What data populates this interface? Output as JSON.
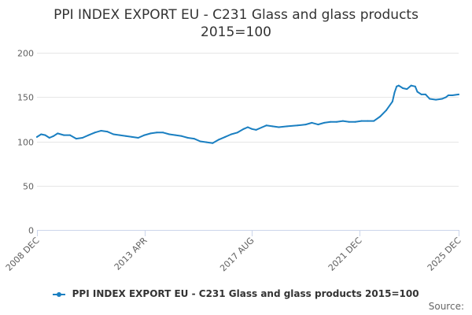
{
  "chart_data": {
    "type": "line",
    "title_line1": "PPI INDEX EXPORT EU - C231 Glass and glass products",
    "title_line2": "2015=100",
    "xlabel": "",
    "ylabel": "",
    "ylim": [
      0,
      200
    ],
    "yticks": [
      0,
      50,
      100,
      150,
      200
    ],
    "xlim": [
      "2008-12",
      "2025-12"
    ],
    "xticks": [
      {
        "date": "2008-12",
        "label": "2008 DEC"
      },
      {
        "date": "2013-04",
        "label": "2013 APR"
      },
      {
        "date": "2017-08",
        "label": "2017 AUG"
      },
      {
        "date": "2021-12",
        "label": "2021 DEC"
      },
      {
        "date": "2025-12",
        "label": "2025 DEC"
      }
    ],
    "grid": true,
    "legend_position": "bottom",
    "color": "#1a7fc1",
    "series": [
      {
        "name": "PPI INDEX EXPORT EU - C231 Glass and glass products 2015=100",
        "points": [
          [
            "2008-12",
            105
          ],
          [
            "2009-02",
            108
          ],
          [
            "2009-04",
            107
          ],
          [
            "2009-06",
            104
          ],
          [
            "2009-08",
            106
          ],
          [
            "2009-10",
            109
          ],
          [
            "2010-01",
            107
          ],
          [
            "2010-04",
            107
          ],
          [
            "2010-07",
            103
          ],
          [
            "2010-10",
            104
          ],
          [
            "2011-01",
            107
          ],
          [
            "2011-04",
            110
          ],
          [
            "2011-07",
            112
          ],
          [
            "2011-10",
            111
          ],
          [
            "2012-01",
            108
          ],
          [
            "2012-04",
            107
          ],
          [
            "2012-07",
            106
          ],
          [
            "2012-10",
            105
          ],
          [
            "2013-01",
            104
          ],
          [
            "2013-04",
            107
          ],
          [
            "2013-07",
            109
          ],
          [
            "2013-10",
            110
          ],
          [
            "2014-01",
            110
          ],
          [
            "2014-04",
            108
          ],
          [
            "2014-07",
            107
          ],
          [
            "2014-10",
            106
          ],
          [
            "2015-01",
            104
          ],
          [
            "2015-04",
            103
          ],
          [
            "2015-07",
            100
          ],
          [
            "2015-10",
            99
          ],
          [
            "2016-01",
            98
          ],
          [
            "2016-04",
            102
          ],
          [
            "2016-07",
            105
          ],
          [
            "2016-10",
            108
          ],
          [
            "2017-01",
            110
          ],
          [
            "2017-04",
            114
          ],
          [
            "2017-06",
            116
          ],
          [
            "2017-08",
            114
          ],
          [
            "2017-10",
            113
          ],
          [
            "2018-01",
            116
          ],
          [
            "2018-03",
            118
          ],
          [
            "2018-06",
            117
          ],
          [
            "2018-09",
            116
          ],
          [
            "2019-01",
            117
          ],
          [
            "2019-06",
            118
          ],
          [
            "2019-10",
            119
          ],
          [
            "2020-01",
            121
          ],
          [
            "2020-04",
            119
          ],
          [
            "2020-07",
            121
          ],
          [
            "2020-10",
            122
          ],
          [
            "2021-01",
            122
          ],
          [
            "2021-04",
            123
          ],
          [
            "2021-07",
            122
          ],
          [
            "2021-10",
            122
          ],
          [
            "2022-01",
            123
          ],
          [
            "2022-04",
            123
          ],
          [
            "2022-07",
            123
          ],
          [
            "2022-10",
            128
          ],
          [
            "2023-01",
            135
          ],
          [
            "2023-04",
            145
          ],
          [
            "2023-05",
            155
          ],
          [
            "2023-06",
            162
          ],
          [
            "2023-07",
            163
          ],
          [
            "2023-09",
            160
          ],
          [
            "2023-11",
            159
          ],
          [
            "2024-01",
            163
          ],
          [
            "2024-03",
            162
          ],
          [
            "2024-04",
            156
          ],
          [
            "2024-06",
            153
          ],
          [
            "2024-08",
            153
          ],
          [
            "2024-10",
            148
          ],
          [
            "2025-01",
            147
          ],
          [
            "2025-04",
            148
          ],
          [
            "2025-06",
            150
          ],
          [
            "2025-07",
            152
          ],
          [
            "2025-09",
            152
          ],
          [
            "2025-12",
            153
          ]
        ]
      }
    ]
  },
  "source_label": "Source:"
}
